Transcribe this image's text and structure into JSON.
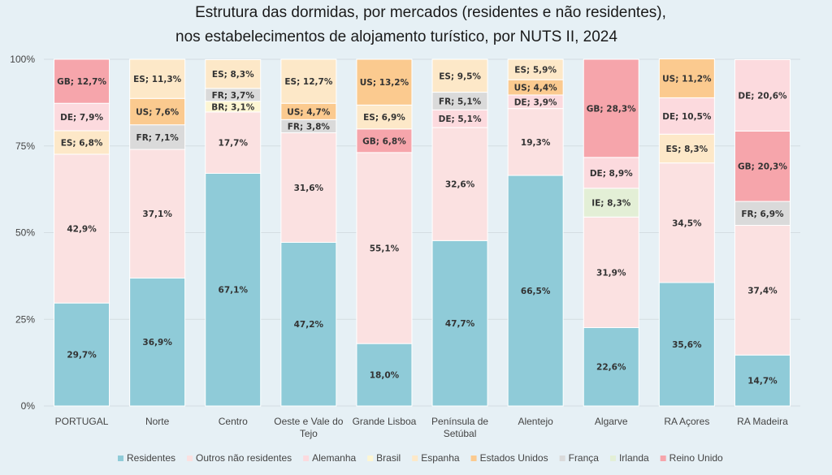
{
  "chart_data": {
    "type": "bar",
    "stacked": true,
    "title": "Estrutura das dormidas, por mercados (residentes e não residentes),",
    "subtitle": "nos estabelecimentos de alojamento turístico, por NUTS II, 2024",
    "ylim": [
      0,
      100
    ],
    "yticks": [
      "0%",
      "25%",
      "50%",
      "75%",
      "100%"
    ],
    "grid": true,
    "legend_position": "bottom",
    "categories": [
      [
        "PORTUGAL"
      ],
      [
        "Norte"
      ],
      [
        "Centro"
      ],
      [
        "Oeste e Vale do",
        "Tejo"
      ],
      [
        "Grande Lisboa"
      ],
      [
        "Península de",
        "Setúbal"
      ],
      [
        "Alentejo"
      ],
      [
        "Algarve"
      ],
      [
        "RA Açores"
      ],
      [
        "RA Madeira"
      ]
    ],
    "series": [
      {
        "name": "Residentes",
        "code": "RES",
        "color": "#8fcbd8",
        "values": [
          29.7,
          36.9,
          67.1,
          47.2,
          18.0,
          47.7,
          66.5,
          22.6,
          35.6,
          14.7
        ]
      },
      {
        "name": "Outros não residentes",
        "code": "OUT",
        "color": "#fbe1e1",
        "values": [
          42.9,
          37.1,
          17.7,
          31.6,
          55.1,
          32.6,
          19.3,
          31.9,
          34.5,
          37.4
        ]
      },
      {
        "name": "Alemanha",
        "code": "DE",
        "color": "#fcdade",
        "values": [
          7.9,
          0,
          0,
          0,
          0,
          5.1,
          3.9,
          8.9,
          10.5,
          20.6
        ]
      },
      {
        "name": "Brasil",
        "code": "BR",
        "color": "#fdf6d3",
        "values": [
          0,
          0,
          3.1,
          0,
          0,
          0,
          0,
          0,
          0,
          0
        ]
      },
      {
        "name": "Espanha",
        "code": "ES",
        "color": "#fde8c8",
        "values": [
          6.8,
          11.3,
          8.3,
          12.7,
          6.9,
          9.5,
          5.9,
          0,
          8.3,
          0
        ]
      },
      {
        "name": "Estados Unidos",
        "code": "US",
        "color": "#fbca8f",
        "values": [
          0,
          7.6,
          0,
          4.7,
          13.2,
          0,
          4.4,
          0,
          11.2,
          0
        ]
      },
      {
        "name": "França",
        "code": "FR",
        "color": "#dadada",
        "values": [
          0,
          7.1,
          3.7,
          3.8,
          0,
          5.1,
          0,
          0,
          0,
          6.9
        ]
      },
      {
        "name": "Irlanda",
        "code": "IE",
        "color": "#e3efd6",
        "values": [
          0,
          0,
          0,
          0,
          0,
          0,
          0,
          8.3,
          0,
          0
        ]
      },
      {
        "name": "Reino Unido",
        "code": "GB",
        "color": "#f6a5ab",
        "values": [
          12.7,
          0,
          0,
          0,
          6.8,
          0,
          0,
          28.3,
          0,
          20.3
        ]
      }
    ],
    "stack_order": [
      [
        "RES",
        "OUT",
        "ES",
        "DE",
        "GB"
      ],
      [
        "RES",
        "OUT",
        "FR",
        "US",
        "ES"
      ],
      [
        "RES",
        "OUT",
        "BR",
        "FR",
        "ES"
      ],
      [
        "RES",
        "OUT",
        "FR",
        "US",
        "ES"
      ],
      [
        "RES",
        "OUT",
        "GB",
        "ES",
        "US"
      ],
      [
        "RES",
        "OUT",
        "DE",
        "FR",
        "ES"
      ],
      [
        "RES",
        "OUT",
        "DE",
        "US",
        "ES"
      ],
      [
        "RES",
        "OUT",
        "IE",
        "DE",
        "GB"
      ],
      [
        "RES",
        "OUT",
        "ES",
        "DE",
        "US"
      ],
      [
        "RES",
        "OUT",
        "FR",
        "GB",
        "DE"
      ]
    ]
  }
}
